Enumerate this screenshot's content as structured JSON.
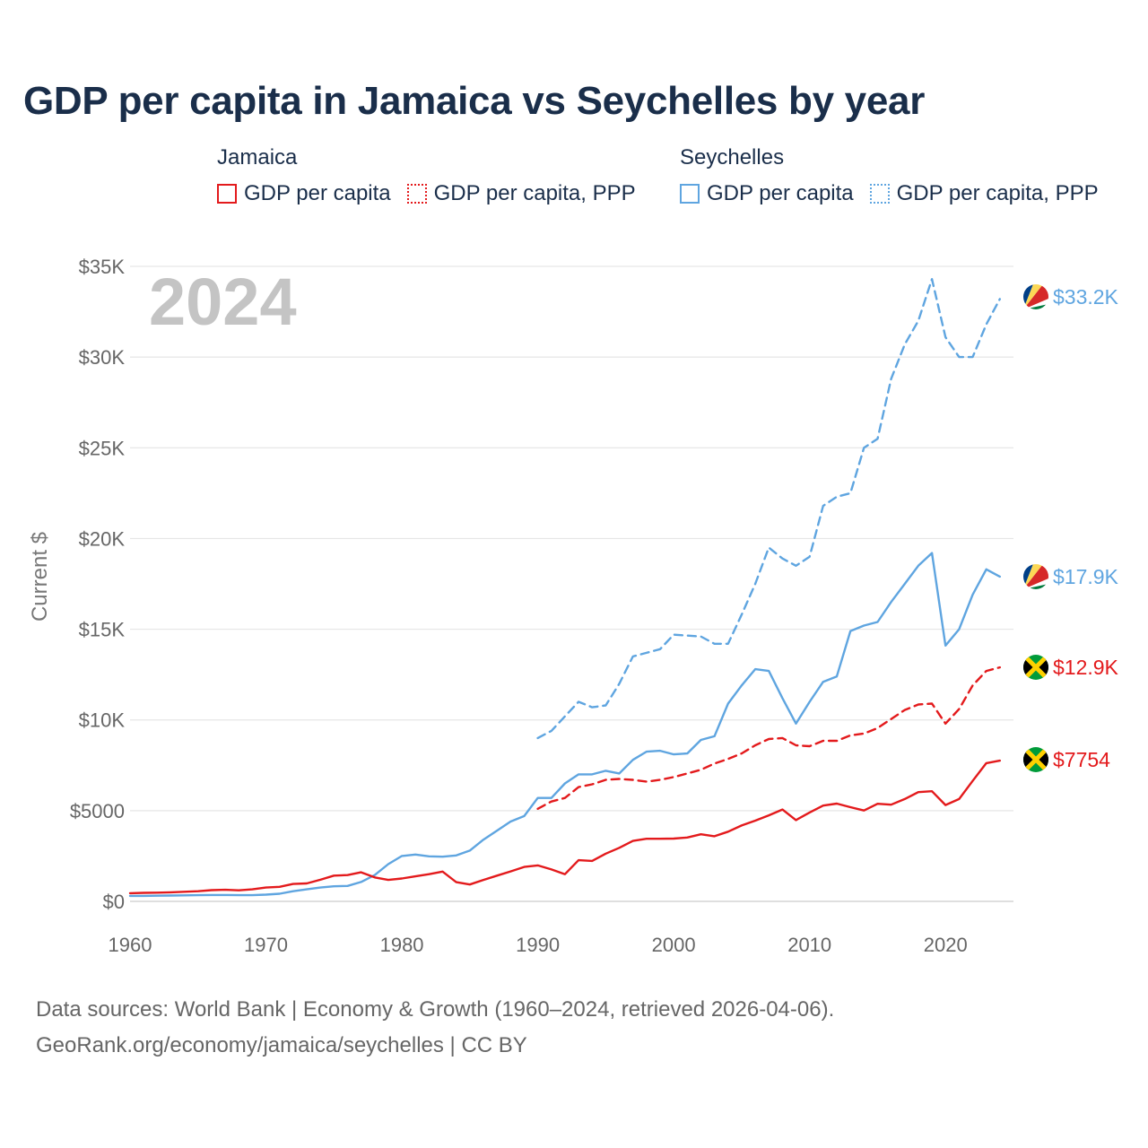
{
  "title": "GDP per capita in Jamaica vs Seychelles by year",
  "legend": {
    "groups": [
      {
        "country": "Jamaica",
        "color": "#e31a1c",
        "items": [
          {
            "label": "GDP per capita",
            "style": "solid"
          },
          {
            "label": "GDP per capita, PPP",
            "style": "dotted"
          }
        ]
      },
      {
        "country": "Seychelles",
        "color": "#5fa5e0",
        "items": [
          {
            "label": "GDP per capita",
            "style": "solid"
          },
          {
            "label": "GDP per capita, PPP",
            "style": "dotted"
          }
        ]
      }
    ]
  },
  "chart_data": {
    "type": "line",
    "title": "GDP per capita in Jamaica vs Seychelles by year",
    "year_label": "2024",
    "ylabel": "Current $",
    "xlabel": "",
    "xlim": [
      1960,
      2025
    ],
    "ylim": [
      0,
      35000
    ],
    "x_ticks": [
      1960,
      1970,
      1980,
      1990,
      2000,
      2010,
      2020
    ],
    "x_tick_labels": [
      "1960",
      "1970",
      "1980",
      "1990",
      "2000",
      "2010",
      "2020"
    ],
    "y_ticks": [
      0,
      5000,
      10000,
      15000,
      20000,
      25000,
      30000,
      35000
    ],
    "y_tick_labels": [
      "$0",
      "$5000",
      "$10K",
      "$15K",
      "$20K",
      "$25K",
      "$30K",
      "$35K"
    ],
    "grid": true,
    "series": [
      {
        "name": "Seychelles GDP per capita, PPP",
        "country": "Seychelles",
        "color": "#5fa5e0",
        "dash": "dashed",
        "end_label": "$33.2K",
        "x": [
          1990,
          1991,
          1992,
          1993,
          1994,
          1995,
          1996,
          1997,
          1998,
          1999,
          2000,
          2001,
          2002,
          2003,
          2004,
          2005,
          2006,
          2007,
          2008,
          2009,
          2010,
          2011,
          2012,
          2013,
          2014,
          2015,
          2016,
          2017,
          2018,
          2019,
          2020,
          2021,
          2022,
          2023,
          2024
        ],
        "values": [
          9000,
          9400,
          10200,
          11000,
          10700,
          10800,
          12000,
          13500,
          13700,
          13900,
          14700,
          14650,
          14600,
          14200,
          14200,
          15800,
          17500,
          19500,
          18900,
          18500,
          19000,
          21800,
          22300,
          22500,
          25000,
          25500,
          28800,
          30700,
          32000,
          34300,
          31100,
          30000,
          30000,
          31800,
          33200
        ]
      },
      {
        "name": "Seychelles GDP per capita",
        "country": "Seychelles",
        "color": "#5fa5e0",
        "dash": "solid",
        "end_label": "$17.9K",
        "x": [
          1960,
          1961,
          1962,
          1963,
          1964,
          1965,
          1966,
          1967,
          1968,
          1969,
          1970,
          1971,
          1972,
          1973,
          1974,
          1975,
          1976,
          1977,
          1978,
          1979,
          1980,
          1981,
          1982,
          1983,
          1984,
          1985,
          1986,
          1987,
          1988,
          1989,
          1990,
          1991,
          1992,
          1993,
          1994,
          1995,
          1996,
          1997,
          1998,
          1999,
          2000,
          2001,
          2002,
          2003,
          2004,
          2005,
          2006,
          2007,
          2008,
          2009,
          2010,
          2011,
          2012,
          2013,
          2014,
          2015,
          2016,
          2017,
          2018,
          2019,
          2020,
          2021,
          2022,
          2023,
          2024
        ],
        "values": [
          300,
          300,
          310,
          320,
          330,
          340,
          350,
          350,
          340,
          340,
          370,
          420,
          560,
          660,
          760,
          830,
          850,
          1070,
          1450,
          2050,
          2500,
          2580,
          2480,
          2460,
          2530,
          2800,
          3400,
          3900,
          4400,
          4700,
          5700,
          5700,
          6500,
          7000,
          7000,
          7200,
          7050,
          7800,
          8250,
          8300,
          8100,
          8150,
          8900,
          9100,
          10900,
          11900,
          12800,
          12700,
          11200,
          9800,
          11000,
          12100,
          12400,
          14900,
          15200,
          15400,
          16500,
          17500,
          18500,
          19200,
          14100,
          15000,
          16900,
          18300,
          17900
        ]
      },
      {
        "name": "Jamaica GDP per capita, PPP",
        "country": "Jamaica",
        "color": "#e31a1c",
        "dash": "dashed",
        "end_label": "$12.9K",
        "x": [
          1990,
          1991,
          1992,
          1993,
          1994,
          1995,
          1996,
          1997,
          1998,
          1999,
          2000,
          2001,
          2002,
          2003,
          2004,
          2005,
          2006,
          2007,
          2008,
          2009,
          2010,
          2011,
          2012,
          2013,
          2014,
          2015,
          2016,
          2017,
          2018,
          2019,
          2020,
          2021,
          2022,
          2023,
          2024
        ],
        "values": [
          5100,
          5500,
          5700,
          6300,
          6450,
          6700,
          6750,
          6700,
          6600,
          6700,
          6850,
          7050,
          7250,
          7600,
          7850,
          8150,
          8600,
          8950,
          9000,
          8600,
          8550,
          8850,
          8850,
          9150,
          9250,
          9550,
          10050,
          10550,
          10850,
          10900,
          9800,
          10600,
          11900,
          12700,
          12900
        ]
      },
      {
        "name": "Jamaica GDP per capita",
        "country": "Jamaica",
        "color": "#e31a1c",
        "dash": "solid",
        "end_label": "$7754",
        "x": [
          1960,
          1961,
          1962,
          1963,
          1964,
          1965,
          1966,
          1967,
          1968,
          1969,
          1970,
          1971,
          1972,
          1973,
          1974,
          1975,
          1976,
          1977,
          1978,
          1979,
          1980,
          1981,
          1982,
          1983,
          1984,
          1985,
          1986,
          1987,
          1988,
          1989,
          1990,
          1991,
          1992,
          1993,
          1994,
          1995,
          1996,
          1997,
          1998,
          1999,
          2000,
          2001,
          2002,
          2003,
          2004,
          2005,
          2006,
          2007,
          2008,
          2009,
          2010,
          2011,
          2012,
          2013,
          2014,
          2015,
          2016,
          2017,
          2018,
          2019,
          2020,
          2021,
          2022,
          2023,
          2024
        ],
        "values": [
          450,
          470,
          480,
          500,
          530,
          560,
          620,
          640,
          610,
          660,
          760,
          800,
          960,
          990,
          1190,
          1420,
          1450,
          1600,
          1320,
          1180,
          1260,
          1380,
          1500,
          1640,
          1060,
          930,
          1180,
          1420,
          1650,
          1900,
          1980,
          1760,
          1500,
          2270,
          2230,
          2630,
          2950,
          3330,
          3450,
          3450,
          3460,
          3520,
          3700,
          3590,
          3840,
          4180,
          4450,
          4740,
          5060,
          4480,
          4900,
          5280,
          5390,
          5190,
          5010,
          5380,
          5330,
          5640,
          6020,
          6070,
          5310,
          5640,
          6640,
          7620,
          7754
        ]
      }
    ]
  },
  "footer": {
    "line1": "Data sources: World Bank | Economy & Growth (1960–2024, retrieved 2026-04-06).",
    "line2": "GeoRank.org/economy/jamaica/seychelles | CC BY"
  }
}
